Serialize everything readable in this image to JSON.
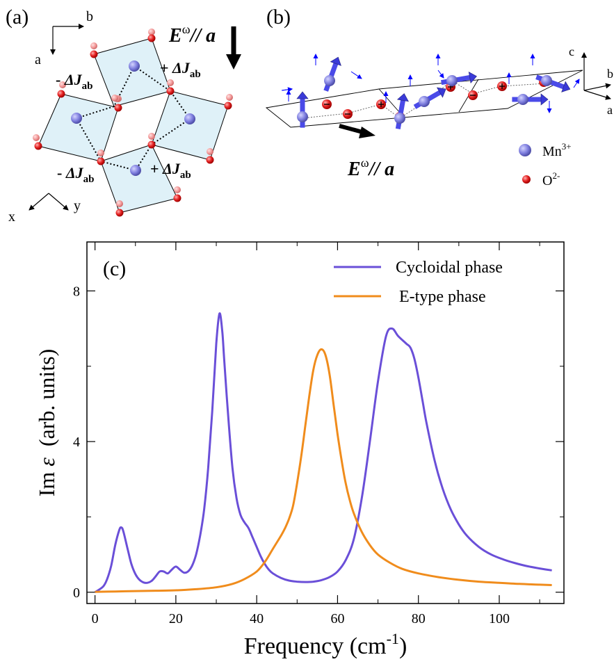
{
  "panel_a": {
    "label": "(a)",
    "axis_b": "b",
    "axis_a": "a",
    "axis_x": "x",
    "axis_y": "y",
    "efield_E": "E",
    "efield_omega": "ω",
    "efield_rest": "// a",
    "dj_sign_minus": "- ",
    "dj_sign_plus": "+ ",
    "dj_main": "ΔJ",
    "dj_sub": "ab"
  },
  "panel_b": {
    "label": "(b)",
    "axis_c": "c",
    "axis_b": "b",
    "axis_a": "a",
    "efield_E": "E",
    "efield_omega": "ω",
    "efield_rest": "// a",
    "legend": [
      {
        "label": "Mn",
        "sup": "3+",
        "color": "#7f7fdf"
      },
      {
        "label": "O",
        "sup": "2-",
        "color": "#e02020"
      }
    ]
  },
  "colors": {
    "cycloidal": "#6a4fd8",
    "etype": "#f08c1c",
    "plaquette": "#dff1f8",
    "mn": "#7f7fdf",
    "oxygen": "#e02020",
    "spin": "#4a4ae8"
  },
  "chart_data": {
    "type": "line",
    "panel_label": "(c)",
    "xlabel": "Frequency (cm",
    "xlabel_sup": "-1",
    "xlabel_close": ")",
    "ylabel_pre": "Im ",
    "ylabel_symbol": "ε",
    "ylabel_post": "  (arb. units)",
    "xlim": [
      -2,
      116
    ],
    "ylim": [
      -0.3,
      9.3
    ],
    "x_ticks": [
      0,
      20,
      40,
      60,
      80,
      100
    ],
    "y_ticks": [
      0,
      4,
      8
    ],
    "grid": false,
    "legend_position": "top-right",
    "series": [
      {
        "name": "Cycloidal phase",
        "color": "#6a4fd8",
        "points": [
          [
            0,
            0
          ],
          [
            2,
            0.15
          ],
          [
            3,
            0.35
          ],
          [
            4,
            0.7
          ],
          [
            5,
            1.25
          ],
          [
            6,
            1.65
          ],
          [
            6.5,
            1.72
          ],
          [
            7,
            1.62
          ],
          [
            8,
            1.18
          ],
          [
            9,
            0.75
          ],
          [
            10,
            0.48
          ],
          [
            11,
            0.33
          ],
          [
            12,
            0.26
          ],
          [
            13,
            0.25
          ],
          [
            14,
            0.3
          ],
          [
            15,
            0.42
          ],
          [
            16,
            0.55
          ],
          [
            17,
            0.55
          ],
          [
            18,
            0.5
          ],
          [
            19,
            0.6
          ],
          [
            20,
            0.68
          ],
          [
            21,
            0.6
          ],
          [
            22,
            0.52
          ],
          [
            23,
            0.55
          ],
          [
            24,
            0.7
          ],
          [
            25,
            1.0
          ],
          [
            26,
            1.5
          ],
          [
            27,
            2.2
          ],
          [
            28,
            3.3
          ],
          [
            29,
            4.8
          ],
          [
            30,
            6.6
          ],
          [
            30.8,
            7.4
          ],
          [
            31.5,
            6.9
          ],
          [
            32,
            6.1
          ],
          [
            33,
            4.6
          ],
          [
            34,
            3.3
          ],
          [
            35,
            2.5
          ],
          [
            36,
            2.05
          ],
          [
            37,
            1.85
          ],
          [
            38,
            1.7
          ],
          [
            39,
            1.45
          ],
          [
            40,
            1.2
          ],
          [
            41,
            0.95
          ],
          [
            42,
            0.75
          ],
          [
            43,
            0.6
          ],
          [
            44,
            0.5
          ],
          [
            46,
            0.38
          ],
          [
            48,
            0.31
          ],
          [
            50,
            0.28
          ],
          [
            52,
            0.27
          ],
          [
            54,
            0.28
          ],
          [
            56,
            0.32
          ],
          [
            58,
            0.4
          ],
          [
            60,
            0.55
          ],
          [
            62,
            0.85
          ],
          [
            64,
            1.4
          ],
          [
            66,
            2.5
          ],
          [
            68,
            4.0
          ],
          [
            70,
            5.6
          ],
          [
            72,
            6.8
          ],
          [
            73.5,
            7.0
          ],
          [
            75,
            6.8
          ],
          [
            77,
            6.6
          ],
          [
            78,
            6.5
          ],
          [
            79,
            6.2
          ],
          [
            80,
            5.7
          ],
          [
            81,
            5.1
          ],
          [
            82,
            4.5
          ],
          [
            84,
            3.5
          ],
          [
            86,
            2.75
          ],
          [
            88,
            2.2
          ],
          [
            90,
            1.8
          ],
          [
            92,
            1.5
          ],
          [
            95,
            1.2
          ],
          [
            98,
            1.0
          ],
          [
            101,
            0.87
          ],
          [
            104,
            0.77
          ],
          [
            107,
            0.69
          ],
          [
            110,
            0.63
          ],
          [
            113,
            0.58
          ]
        ]
      },
      {
        "name": "E-type phase",
        "color": "#f08c1c",
        "points": [
          [
            0,
            0.01
          ],
          [
            5,
            0.02
          ],
          [
            10,
            0.03
          ],
          [
            15,
            0.04
          ],
          [
            20,
            0.05
          ],
          [
            25,
            0.08
          ],
          [
            30,
            0.13
          ],
          [
            34,
            0.22
          ],
          [
            37,
            0.35
          ],
          [
            40,
            0.55
          ],
          [
            42,
            0.8
          ],
          [
            44,
            1.15
          ],
          [
            46,
            1.5
          ],
          [
            47,
            1.7
          ],
          [
            48,
            1.95
          ],
          [
            49,
            2.3
          ],
          [
            50,
            2.9
          ],
          [
            51,
            3.6
          ],
          [
            52,
            4.4
          ],
          [
            53,
            5.2
          ],
          [
            54,
            5.9
          ],
          [
            55,
            6.3
          ],
          [
            56,
            6.45
          ],
          [
            57,
            6.3
          ],
          [
            58,
            5.8
          ],
          [
            59,
            5.0
          ],
          [
            60,
            4.2
          ],
          [
            61,
            3.5
          ],
          [
            62,
            2.9
          ],
          [
            63,
            2.45
          ],
          [
            64,
            2.1
          ],
          [
            66,
            1.6
          ],
          [
            68,
            1.25
          ],
          [
            70,
            1.0
          ],
          [
            73,
            0.78
          ],
          [
            76,
            0.62
          ],
          [
            80,
            0.5
          ],
          [
            85,
            0.4
          ],
          [
            90,
            0.33
          ],
          [
            95,
            0.28
          ],
          [
            100,
            0.25
          ],
          [
            105,
            0.22
          ],
          [
            110,
            0.2
          ],
          [
            113,
            0.19
          ]
        ]
      }
    ]
  }
}
